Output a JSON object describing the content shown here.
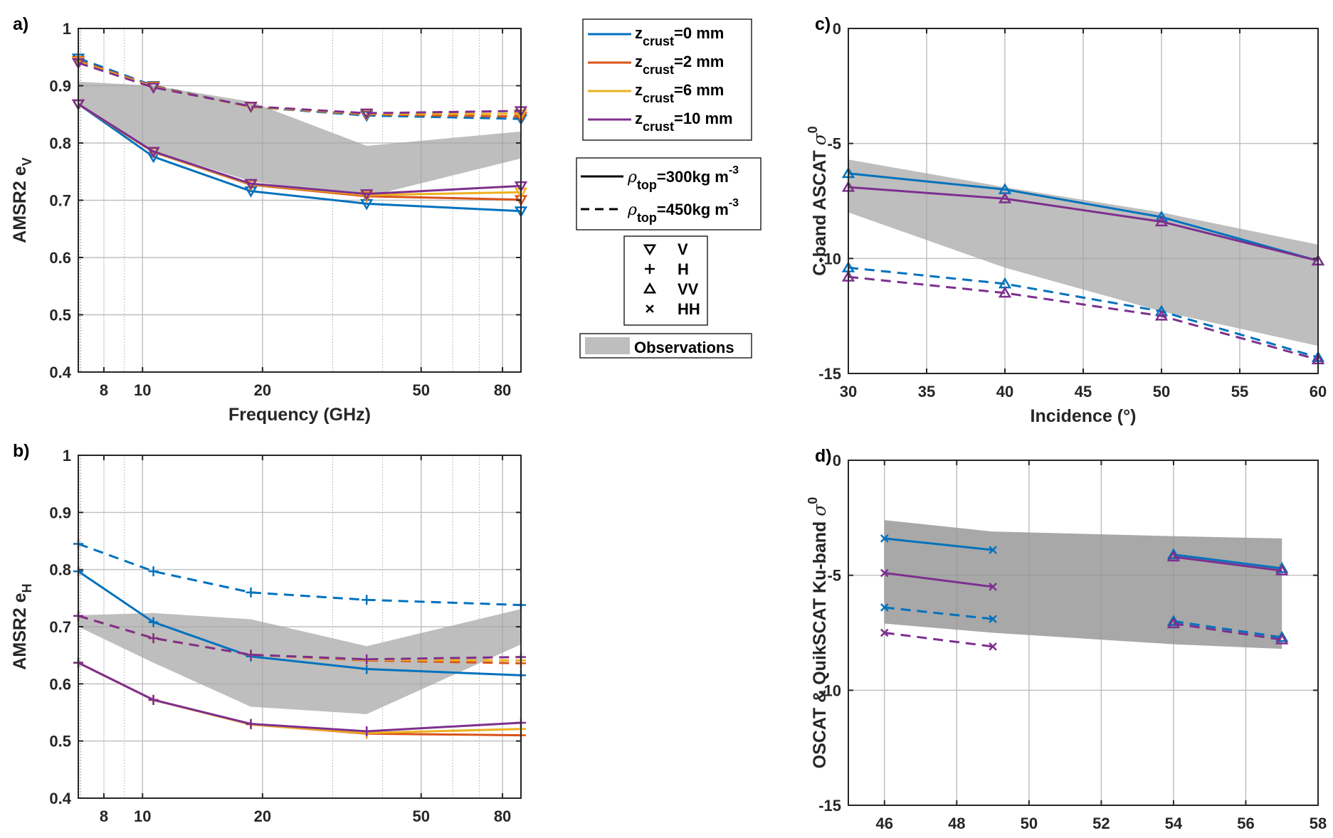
{
  "figure": {
    "legend_crust": {
      "entries": [
        {
          "name": "z",
          "sub": "crust",
          "suffix": "=0 mm",
          "color": "#0072BD"
        },
        {
          "name": "z",
          "sub": "crust",
          "suffix": "=2 mm",
          "color": "#D95319"
        },
        {
          "name": "z",
          "sub": "crust",
          "suffix": "=6 mm",
          "color": "#EDB120"
        },
        {
          "name": "z",
          "sub": "crust",
          "suffix": "=10 mm",
          "color": "#7E2F8E"
        }
      ]
    },
    "legend_density": {
      "entries": [
        {
          "symbol": "ρ",
          "sub": "top",
          "text": "=300kg m",
          "sup": "-3",
          "style": "solid"
        },
        {
          "symbol": "ρ",
          "sub": "top",
          "text": "=450kg m",
          "sup": "-3",
          "style": "dashed"
        }
      ]
    },
    "legend_markers": {
      "entries": [
        {
          "marker": "triangle-down",
          "label": "V"
        },
        {
          "marker": "plus",
          "label": "H"
        },
        {
          "marker": "triangle-up",
          "label": "VV"
        },
        {
          "marker": "x",
          "label": "HH"
        }
      ]
    },
    "legend_obs": {
      "label": "Observations",
      "color": "#BEBEBE"
    }
  },
  "chart_data": [
    {
      "id": "a",
      "panel_label": "a)",
      "type": "line",
      "xscale": "log",
      "xlim": [
        6.9,
        89
      ],
      "ylim": [
        0.4,
        1
      ],
      "xlabel": "Frequency (GHz)",
      "ylabel": "AMSR2 e",
      "ylabel_sub": "V",
      "xticks": [
        8,
        10,
        20,
        50,
        80
      ],
      "yticks": [
        0.4,
        0.5,
        0.6,
        0.7,
        0.8,
        0.9,
        1
      ],
      "ytick_labels": [
        "0.4",
        "0.5",
        "0.6",
        "0.7",
        "0.8",
        "0.9",
        "1"
      ],
      "grid": true,
      "x": [
        6.9,
        10.65,
        18.7,
        36.5,
        89
      ],
      "marker": "triangle-down",
      "observations": {
        "upper": [
          0.907,
          0.9,
          0.872,
          0.795,
          0.82
        ],
        "lower": [
          0.868,
          0.786,
          0.733,
          0.706,
          0.773
        ],
        "x": [
          6.9,
          10.65,
          18.7,
          36.5,
          89
        ]
      },
      "series": [
        {
          "name": "z_crust=0 mm, rho_top=300",
          "color": "#0072BD",
          "dash": false,
          "values": [
            0.868,
            0.776,
            0.716,
            0.694,
            0.681
          ]
        },
        {
          "name": "z_crust=2 mm, rho_top=300",
          "color": "#D95319",
          "dash": false,
          "values": [
            0.868,
            0.784,
            0.727,
            0.707,
            0.701
          ]
        },
        {
          "name": "z_crust=6 mm, rho_top=300",
          "color": "#EDB120",
          "dash": false,
          "values": [
            0.868,
            0.784,
            0.728,
            0.709,
            0.714
          ]
        },
        {
          "name": "z_crust=10 mm, rho_top=300",
          "color": "#7E2F8E",
          "dash": false,
          "values": [
            0.868,
            0.785,
            0.729,
            0.711,
            0.725
          ]
        },
        {
          "name": "z_crust=0 mm, rho_top=450",
          "color": "#0072BD",
          "dash": true,
          "values": [
            0.948,
            0.9,
            0.863,
            0.848,
            0.842
          ]
        },
        {
          "name": "z_crust=2 mm, rho_top=450",
          "color": "#D95319",
          "dash": true,
          "values": [
            0.944,
            0.899,
            0.863,
            0.85,
            0.846
          ]
        },
        {
          "name": "z_crust=6 mm, rho_top=450",
          "color": "#EDB120",
          "dash": true,
          "values": [
            0.942,
            0.898,
            0.863,
            0.851,
            0.851
          ]
        },
        {
          "name": "z_crust=10 mm, rho_top=450",
          "color": "#7E2F8E",
          "dash": true,
          "values": [
            0.94,
            0.897,
            0.864,
            0.852,
            0.856
          ]
        }
      ]
    },
    {
      "id": "b",
      "panel_label": "b)",
      "type": "line",
      "xscale": "log",
      "xlim": [
        6.9,
        89
      ],
      "ylim": [
        0.4,
        1
      ],
      "xlabel": "",
      "ylabel": "AMSR2 e",
      "ylabel_sub": "H",
      "xticks": [
        8,
        10,
        20,
        50,
        80
      ],
      "yticks": [
        0.4,
        0.5,
        0.6,
        0.7,
        0.8,
        0.9,
        1
      ],
      "ytick_labels": [
        "0.4",
        "0.5",
        "0.6",
        "0.7",
        "0.8",
        "0.9",
        "1"
      ],
      "grid": true,
      "x": [
        6.9,
        10.65,
        18.7,
        36.5,
        89
      ],
      "marker": "plus",
      "observations": {
        "upper": [
          0.72,
          0.724,
          0.713,
          0.666,
          0.731
        ],
        "lower": [
          0.7,
          0.637,
          0.56,
          0.547,
          0.669
        ],
        "x": [
          6.9,
          10.65,
          18.7,
          36.5,
          89
        ]
      },
      "series": [
        {
          "name": "z_crust=0 mm, rho_top=300",
          "color": "#0072BD",
          "dash": false,
          "values": [
            0.797,
            0.708,
            0.648,
            0.626,
            0.615
          ]
        },
        {
          "name": "z_crust=2 mm, rho_top=300",
          "color": "#D95319",
          "dash": false,
          "values": [
            0.637,
            0.572,
            0.529,
            0.513,
            0.51
          ]
        },
        {
          "name": "z_crust=6 mm, rho_top=300",
          "color": "#EDB120",
          "dash": false,
          "values": [
            0.637,
            0.572,
            0.529,
            0.514,
            0.521
          ]
        },
        {
          "name": "z_crust=10 mm, rho_top=300",
          "color": "#7E2F8E",
          "dash": false,
          "values": [
            0.637,
            0.572,
            0.53,
            0.517,
            0.532
          ]
        },
        {
          "name": "z_crust=0 mm, rho_top=450",
          "color": "#0072BD",
          "dash": true,
          "values": [
            0.845,
            0.797,
            0.76,
            0.747,
            0.738
          ]
        },
        {
          "name": "z_crust=2 mm, rho_top=450",
          "color": "#D95319",
          "dash": true,
          "values": [
            0.719,
            0.68,
            0.651,
            0.641,
            0.636
          ]
        },
        {
          "name": "z_crust=6 mm, rho_top=450",
          "color": "#EDB120",
          "dash": true,
          "values": [
            0.719,
            0.68,
            0.651,
            0.642,
            0.641
          ]
        },
        {
          "name": "z_crust=10 mm, rho_top=450",
          "color": "#7E2F8E",
          "dash": true,
          "values": [
            0.719,
            0.68,
            0.651,
            0.643,
            0.647
          ]
        }
      ]
    },
    {
      "id": "c",
      "panel_label": "c)",
      "type": "line",
      "xscale": "linear",
      "xlim": [
        30,
        60
      ],
      "ylim": [
        -15,
        0
      ],
      "xlabel": "Incidence (°)",
      "ylabel": "C-band ASCAT σ",
      "ylabel_sup": "0",
      "xticks": [
        30,
        35,
        40,
        45,
        50,
        55,
        60
      ],
      "yticks": [
        -15,
        -10,
        -5,
        0
      ],
      "ytick_labels": [
        "-15",
        "-10",
        "-5",
        "0"
      ],
      "grid": true,
      "x": [
        30,
        40,
        50,
        60
      ],
      "marker": "triangle-up",
      "observations": {
        "upper": [
          -5.7,
          -6.9,
          -8.0,
          -9.4
        ],
        "lower": [
          -8.0,
          -10.4,
          -12.3,
          -13.8
        ],
        "x": [
          30,
          40,
          50,
          60
        ]
      },
      "series": [
        {
          "name": "z_crust=0 mm, rho_top=300",
          "color": "#0072BD",
          "dash": false,
          "values": [
            -6.3,
            -7.0,
            -8.2,
            -10.1
          ]
        },
        {
          "name": "z_crust=10 mm, rho_top=300",
          "color": "#7E2F8E",
          "dash": false,
          "values": [
            -6.9,
            -7.4,
            -8.4,
            -10.1
          ]
        },
        {
          "name": "z_crust=0 mm, rho_top=450",
          "color": "#0072BD",
          "dash": true,
          "values": [
            -10.4,
            -11.1,
            -12.3,
            -14.3
          ]
        },
        {
          "name": "z_crust=10 mm, rho_top=450",
          "color": "#7E2F8E",
          "dash": true,
          "values": [
            -10.8,
            -11.5,
            -12.5,
            -14.4
          ]
        }
      ]
    },
    {
      "id": "d",
      "panel_label": "d)",
      "type": "line",
      "xscale": "linear",
      "xlim": [
        45,
        58
      ],
      "ylim": [
        -15,
        0
      ],
      "xlabel": "",
      "ylabel": "OSCAT & QuikSCAT Ku-band σ",
      "ylabel_sup": "0",
      "xticks": [
        46,
        48,
        50,
        52,
        54,
        56,
        58
      ],
      "yticks": [
        -15,
        -10,
        -5,
        0
      ],
      "ytick_labels": [
        "-15",
        "-10",
        "-5",
        "0"
      ],
      "grid": true,
      "observations": {
        "upper": [
          -2.6,
          -3.1,
          -3.3,
          -3.4
        ],
        "lower": [
          -7.1,
          -7.5,
          -8.0,
          -8.2
        ],
        "x": [
          46,
          49,
          54,
          57
        ]
      },
      "series": [
        {
          "name": "HH z_crust=0 mm, rho_top=300",
          "color": "#0072BD",
          "dash": false,
          "marker": "x",
          "x": [
            46,
            49
          ],
          "values": [
            -3.4,
            -3.9
          ]
        },
        {
          "name": "HH z_crust=10 mm, rho_top=300",
          "color": "#7E2F8E",
          "dash": false,
          "marker": "x",
          "x": [
            46,
            49
          ],
          "values": [
            -4.9,
            -5.5
          ]
        },
        {
          "name": "HH z_crust=0 mm, rho_top=450",
          "color": "#0072BD",
          "dash": true,
          "marker": "x",
          "x": [
            46,
            49
          ],
          "values": [
            -6.4,
            -6.9
          ]
        },
        {
          "name": "HH z_crust=10 mm, rho_top=450",
          "color": "#7E2F8E",
          "dash": true,
          "marker": "x",
          "x": [
            46,
            49
          ],
          "values": [
            -7.5,
            -8.1
          ]
        },
        {
          "name": "VV z_crust=0 mm, rho_top=300",
          "color": "#0072BD",
          "dash": false,
          "marker": "triangle-up",
          "x": [
            54,
            57
          ],
          "values": [
            -4.1,
            -4.7
          ]
        },
        {
          "name": "VV z_crust=10 mm, rho_top=300",
          "color": "#7E2F8E",
          "dash": false,
          "marker": "triangle-up",
          "x": [
            54,
            57
          ],
          "values": [
            -4.2,
            -4.8
          ]
        },
        {
          "name": "VV z_crust=0 mm, rho_top=450",
          "color": "#0072BD",
          "dash": true,
          "marker": "triangle-up",
          "x": [
            54,
            57
          ],
          "values": [
            -7.0,
            -7.7
          ]
        },
        {
          "name": "VV z_crust=10 mm, rho_top=450",
          "color": "#7E2F8E",
          "dash": true,
          "marker": "triangle-up",
          "x": [
            54,
            57
          ],
          "values": [
            -7.1,
            -7.8
          ]
        }
      ]
    }
  ]
}
